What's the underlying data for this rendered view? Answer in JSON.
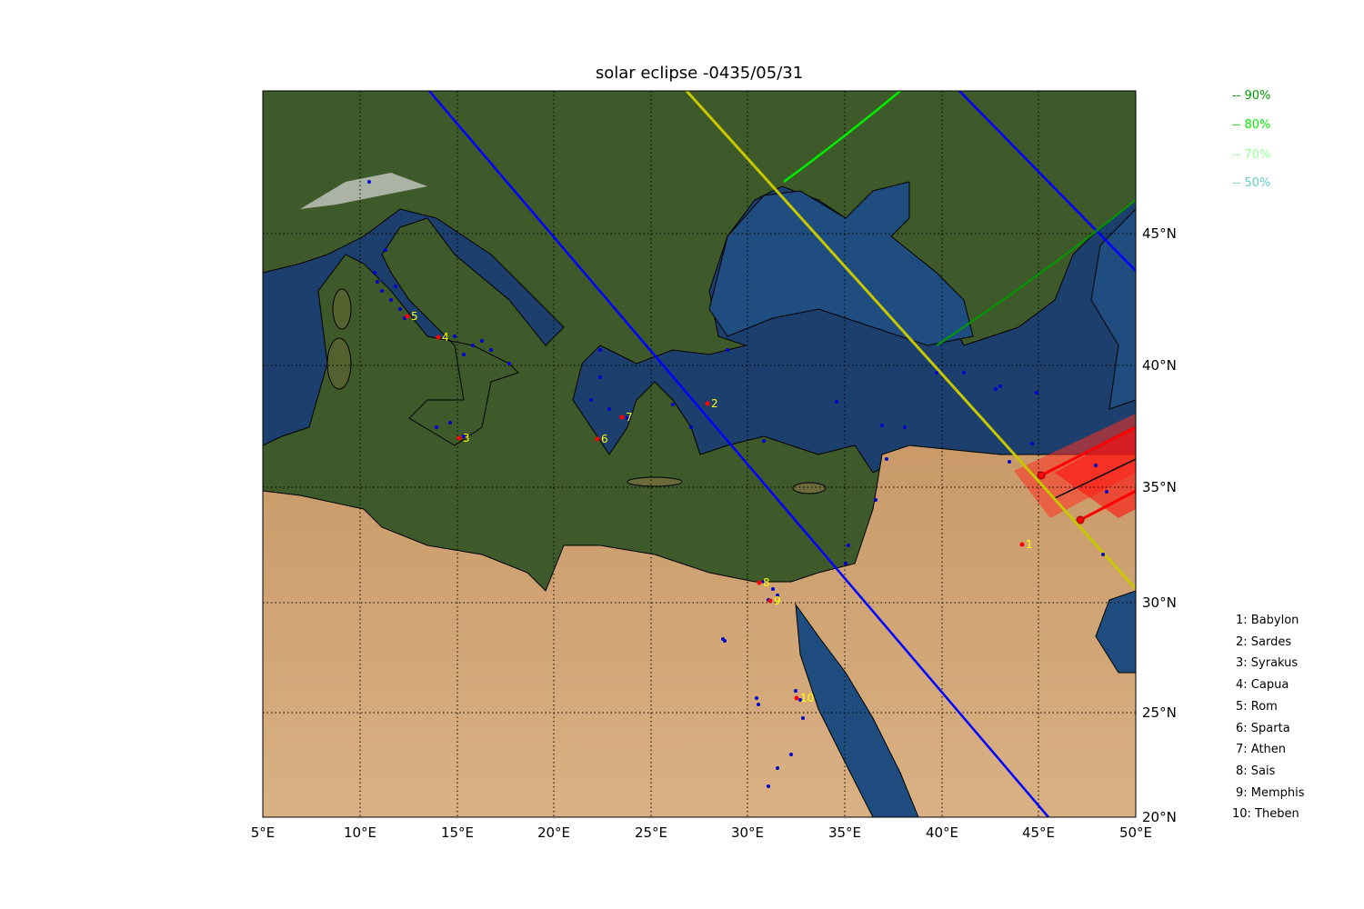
{
  "title": "solar eclipse -0435/05/31",
  "x_ticks": [
    "5°E",
    "10°E",
    "15°E",
    "20°E",
    "25°E",
    "30°E",
    "35°E",
    "40°E",
    "45°E",
    "50°E"
  ],
  "y_ticks": [
    "45°N",
    "40°N",
    "35°N",
    "30°N",
    "25°N",
    "20°N"
  ],
  "legend": [
    {
      "label": "-- 90%",
      "color": "#009900"
    },
    {
      "label": "-- 80%",
      "color": "#00ee00"
    },
    {
      "label": "-- 70%",
      "color": "#99ff99"
    },
    {
      "label": "-- 50%",
      "color": "#66cccc"
    }
  ],
  "cities": [
    {
      "num": "1",
      "label": "1: Babylon"
    },
    {
      "num": "2",
      "label": "2: Sardes"
    },
    {
      "num": "3",
      "label": "3: Syrakus"
    },
    {
      "num": "4",
      "label": "4: Capua"
    },
    {
      "num": "5",
      "label": "5: Rom"
    },
    {
      "num": "6",
      "label": "6: Sparta"
    },
    {
      "num": "7",
      "label": "7: Athen"
    },
    {
      "num": "8",
      "label": "8: Sais"
    },
    {
      "num": "9",
      "label": "9: Memphis"
    },
    {
      "num": "10",
      "label": "10: Theben"
    }
  ],
  "colors": {
    "limit_line": "#0000ff",
    "central_line": "#c8c800",
    "shadow": "#ff0000",
    "city_label": "#ffff00"
  }
}
